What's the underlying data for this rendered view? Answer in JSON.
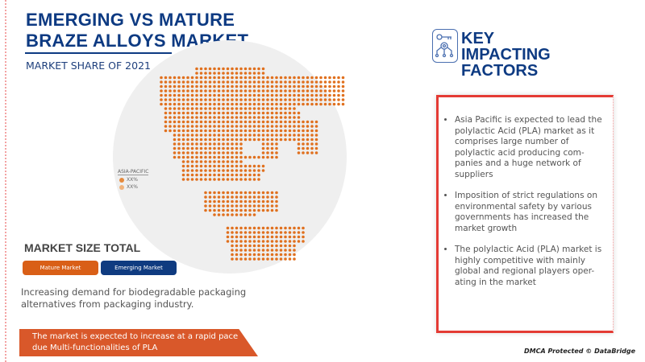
{
  "header": {
    "title": "EMERGING VS MATURE BRAZE ALLOYS MARKET",
    "subtitle": "MARKET SHARE OF 2021"
  },
  "map": {
    "dot_color": "#e0701e",
    "legend": {
      "title": "ASIA-PACIFIC",
      "items": [
        {
          "label": "XX%",
          "color": "#e58a3c"
        },
        {
          "label": "XX%",
          "color": "#f0b27a"
        }
      ]
    }
  },
  "market_size": {
    "title": "MARKET SIZE TOTAL",
    "mature_label": "Mature Market",
    "emerging_label": "Emerging Market",
    "mature_color": "#d95f17",
    "emerging_color": "#0f3b80"
  },
  "description": "Increasing demand for biodegradable packaging alternatives from packaging industry.",
  "banner": "The market is expected to increase at a rapid pace due Multi-functionalities of PLA",
  "key_factors": {
    "icon": "key-gear-network-icon",
    "title": "KEY IMPACTING FACTORS",
    "items": [
      "Asia Pacific is expected to lead the polylactic Acid (PLA) market as it comprises large number of polylactic acid producing com-panies and a huge network of suppliers",
      "Imposition of strict regulations on environmental safety by various governments has increased the market growth",
      "The polylactic Acid (PLA) market is highly competitive with mainly global and regional players oper-ating in the market"
    ]
  },
  "footer": "DMCA Protected © DataBridge"
}
